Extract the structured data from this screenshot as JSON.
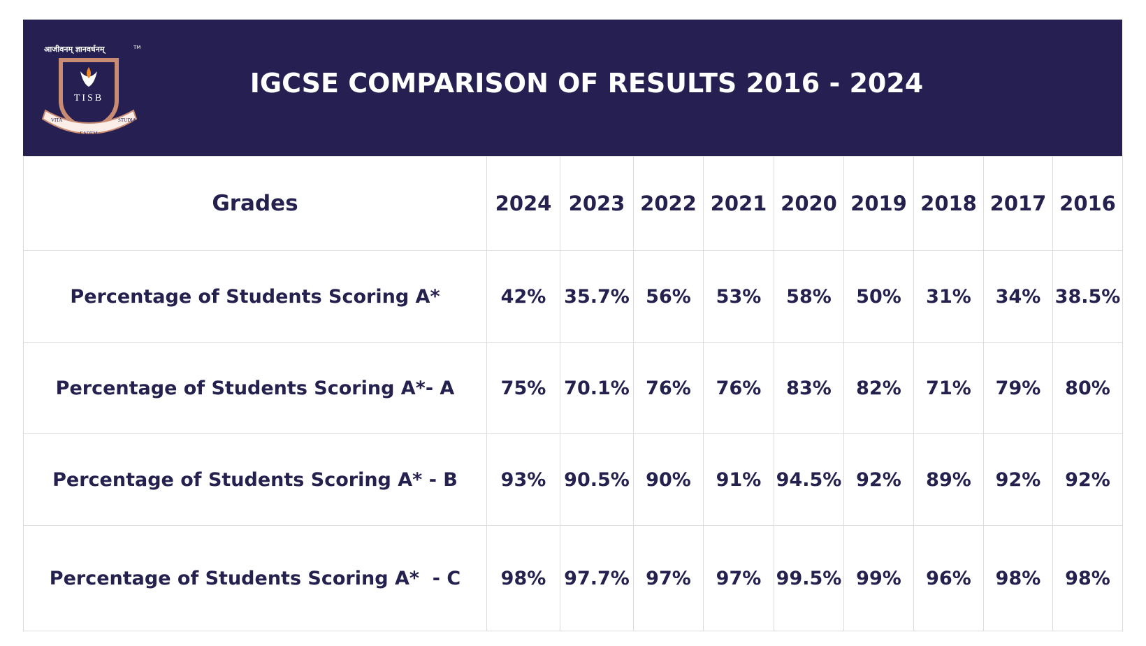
{
  "header": {
    "title": "IGCSE COMPARISON OF RESULTS 2016 - 2024",
    "logo": {
      "motto": "आजीवनम् ज्ञानवर्धनम्",
      "trademark": "TM",
      "initials": "TISB",
      "scroll": [
        "VITA",
        "EADEM",
        "STUDIA"
      ]
    }
  },
  "table": {
    "header": [
      "Grades",
      "2024",
      "2023",
      "2022",
      "2021",
      "2020",
      "2019",
      "2018",
      "2017",
      "2016"
    ],
    "rows": [
      [
        "Percentage of Students Scoring A*",
        "42%",
        "35.7%",
        "56%",
        "53%",
        "58%",
        "50%",
        "31%",
        "34%",
        "38.5%"
      ],
      [
        "Percentage of Students Scoring A*- A",
        "75%",
        "70.1%",
        "76%",
        "76%",
        "83%",
        "82%",
        "71%",
        "79%",
        "80%"
      ],
      [
        "Percentage of Students Scoring A* - B",
        "93%",
        "90.5%",
        "90%",
        "91%",
        "94.5%",
        "92%",
        "89%",
        "92%",
        "92%"
      ],
      [
        "Percentage of Students Scoring A*  - C",
        "98%",
        "97.7%",
        "97%",
        "97%",
        "99.5%",
        "99%",
        "96%",
        "98%",
        "98%"
      ]
    ]
  }
}
